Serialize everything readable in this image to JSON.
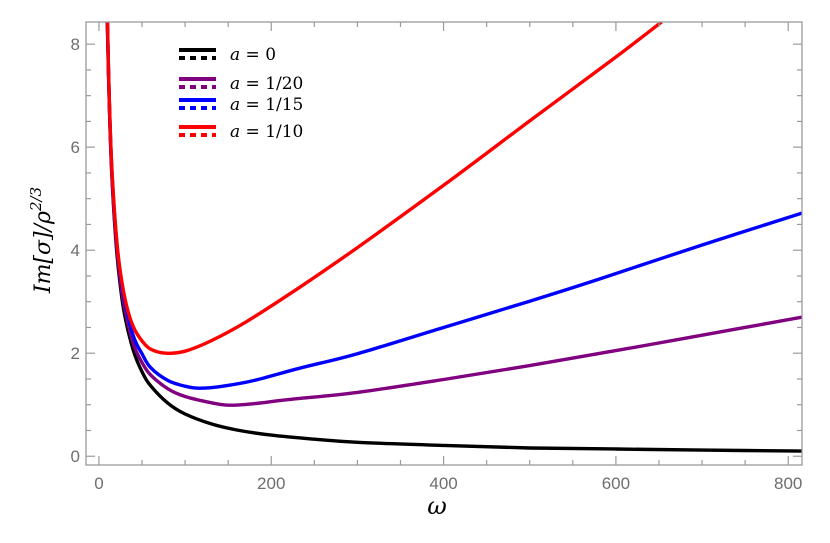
{
  "chart_data": {
    "type": "line",
    "title": "",
    "xlabel": "ω",
    "ylabel": "Im[σ]/ρ^(2/3)",
    "xlim": [
      -15,
      816
    ],
    "ylim": [
      -0.17,
      8.43
    ],
    "xticks": [
      0,
      200,
      400,
      600,
      800
    ],
    "yticks": [
      0,
      2,
      4,
      6,
      8
    ],
    "grid": false,
    "legend_position": "upper-left",
    "legend": [
      {
        "label": "a = 0",
        "color": "#000000",
        "styles": [
          "solid",
          "dotted"
        ]
      },
      {
        "label": "a = 1/20",
        "color": "#800080",
        "styles": [
          "solid",
          "dotted"
        ]
      },
      {
        "label": "a = 1/15",
        "color": "#0000ff",
        "styles": [
          "solid",
          "dotted"
        ]
      },
      {
        "label": "a = 1/10",
        "color": "#ff0000",
        "styles": [
          "solid",
          "dotted"
        ]
      }
    ],
    "series": [
      {
        "name": "a = 0",
        "color": "#000000",
        "x": [
          9.7,
          12,
          15,
          20,
          25,
          30,
          40,
          50,
          60,
          80,
          100,
          130,
          160,
          200,
          250,
          300,
          400,
          500,
          600,
          700,
          816
        ],
        "y": [
          8.43,
          6.83,
          5.47,
          4.1,
          3.28,
          2.73,
          2.05,
          1.64,
          1.37,
          1.03,
          0.82,
          0.63,
          0.51,
          0.41,
          0.33,
          0.27,
          0.21,
          0.16,
          0.14,
          0.12,
          0.1
        ]
      },
      {
        "name": "a = 1/20",
        "color": "#800080",
        "x": [
          9.8,
          12,
          15,
          20,
          25,
          30,
          40,
          50,
          60,
          80,
          100,
          130,
          151,
          180,
          220,
          300,
          400,
          500,
          600,
          700,
          816
        ],
        "y": [
          8.43,
          6.9,
          5.51,
          4.19,
          3.39,
          2.86,
          2.18,
          1.82,
          1.58,
          1.31,
          1.16,
          1.04,
          0.99,
          1.02,
          1.1,
          1.24,
          1.49,
          1.76,
          2.05,
          2.35,
          2.7
        ]
      },
      {
        "name": "a = 1/15",
        "color": "#0000ff",
        "x": [
          9.8,
          12,
          15,
          20,
          25,
          30,
          40,
          50,
          60,
          80,
          100,
          116,
          140,
          180,
          233,
          300,
          400,
          500,
          581,
          700,
          816
        ],
        "y": [
          8.43,
          6.9,
          5.58,
          4.27,
          3.52,
          3.0,
          2.33,
          1.99,
          1.72,
          1.47,
          1.36,
          1.32,
          1.35,
          1.47,
          1.71,
          1.99,
          2.5,
          3.01,
          3.44,
          4.1,
          4.72
        ]
      },
      {
        "name": "a = 1/10",
        "color": "#ff0000",
        "x": [
          9.9,
          12,
          15,
          20,
          25,
          32,
          40,
          50,
          60,
          78,
          100,
          130,
          170,
          233,
          300,
          400,
          500,
          600,
          653
        ],
        "y": [
          8.43,
          6.94,
          5.61,
          4.31,
          3.56,
          2.93,
          2.51,
          2.24,
          2.08,
          2.0,
          2.04,
          2.24,
          2.6,
          3.28,
          4.05,
          5.26,
          6.51,
          7.75,
          8.43
        ]
      }
    ]
  }
}
